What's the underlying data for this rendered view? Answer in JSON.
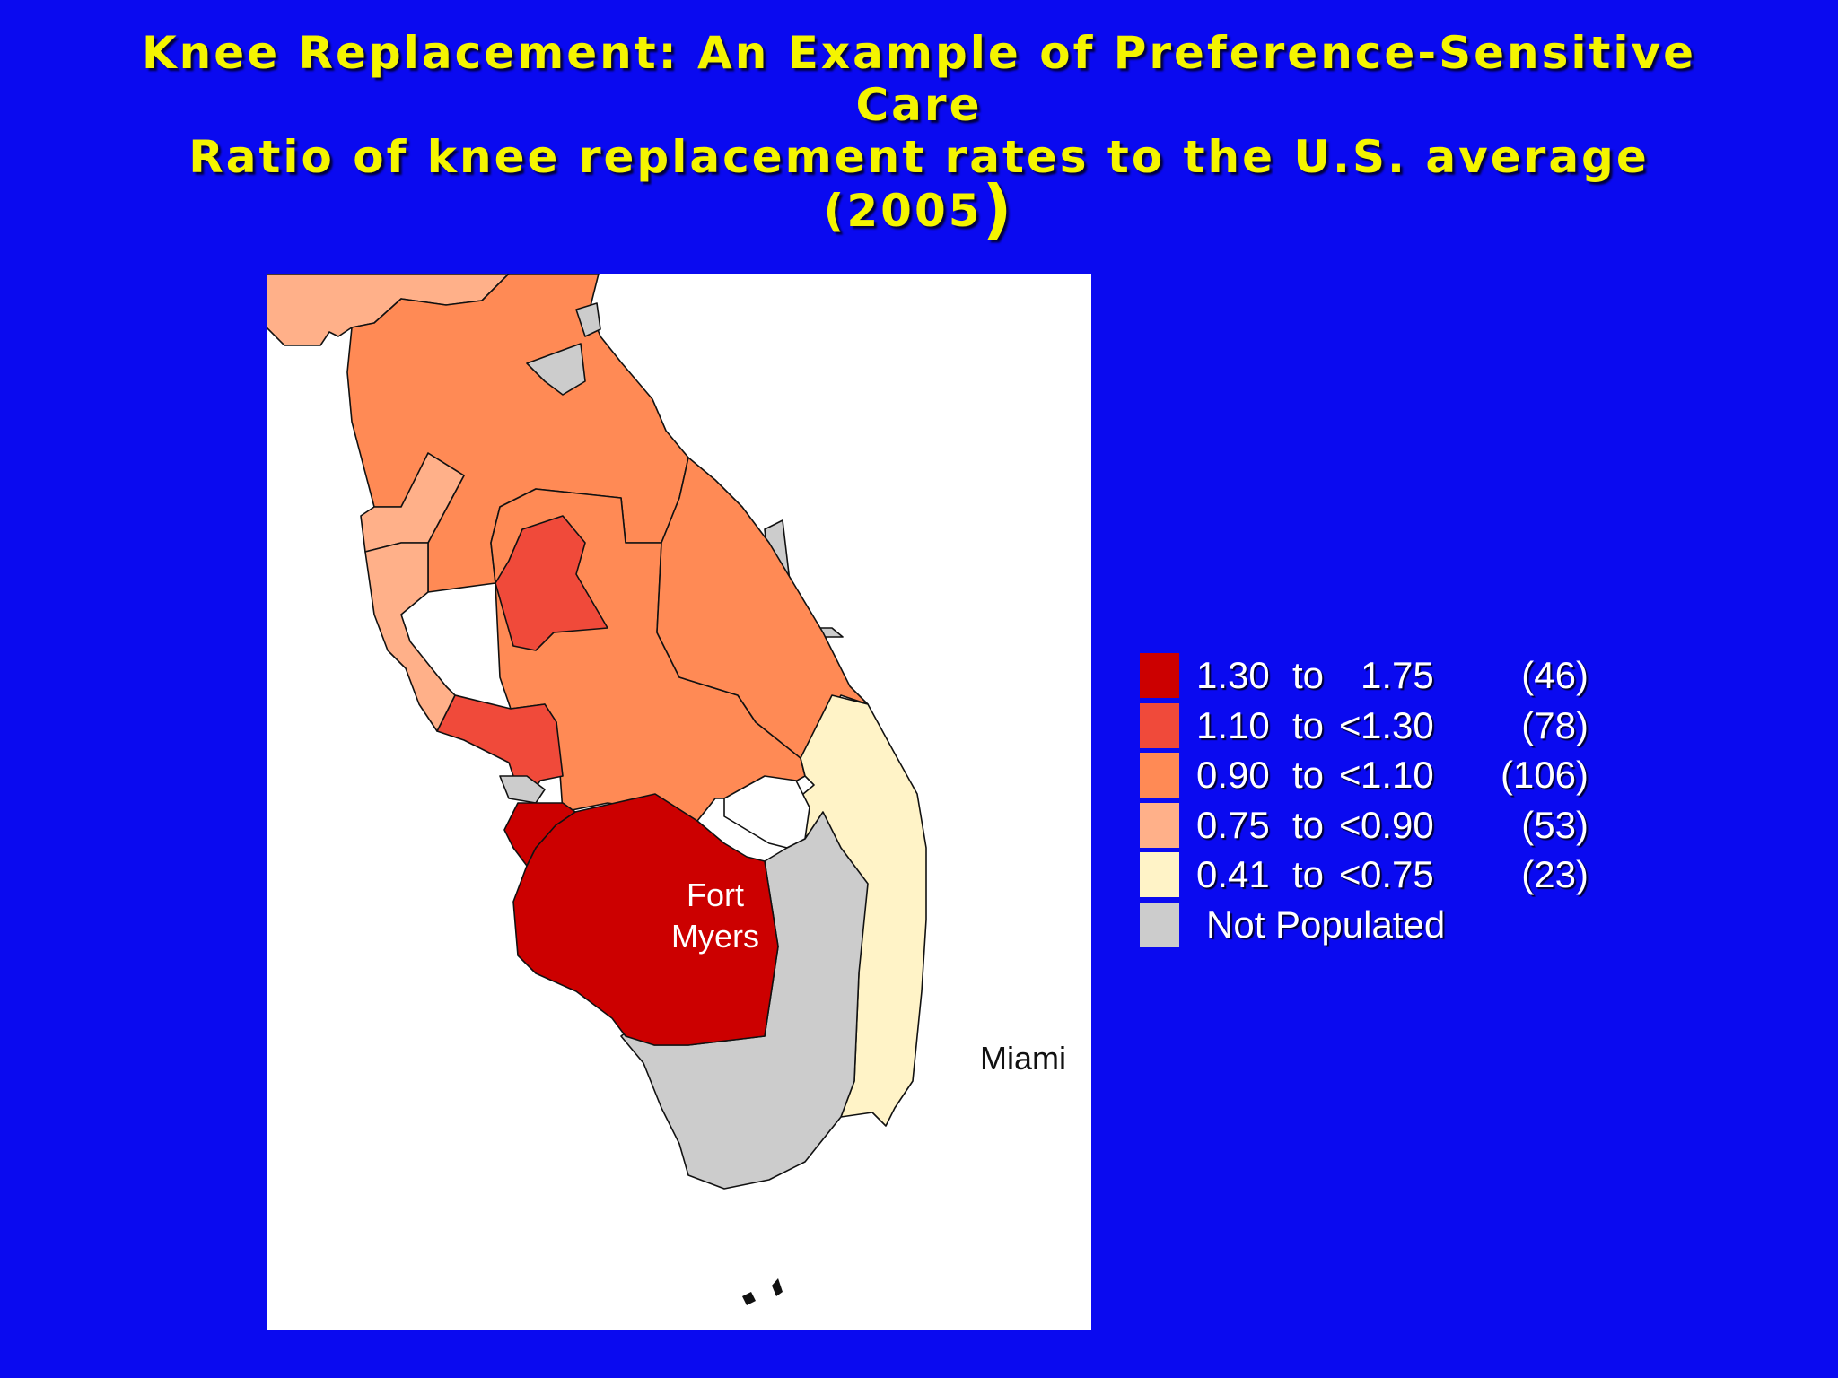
{
  "title": {
    "line1": "Knee Replacement: An Example of Preference-Sensitive",
    "line2": "Care",
    "line3": "Ratio of knee replacement rates to the U.S. average",
    "line4": "(2005",
    "line4_paren": ")"
  },
  "map": {
    "labels": {
      "fort_myers_1": "Fort",
      "fort_myers_2": "Myers",
      "miami": "Miami"
    }
  },
  "legend": {
    "items": [
      {
        "low": "1.30",
        "to": "to",
        "lt": "",
        "high": "1.75",
        "count": "(46)",
        "color": "#cc0000"
      },
      {
        "low": "1.10",
        "to": "to",
        "lt": "<",
        "high": "1.30",
        "count": "(78)",
        "color": "#f04a3a"
      },
      {
        "low": "0.90",
        "to": "to",
        "lt": "<",
        "high": "1.10",
        "count": "(106)",
        "color": "#ff8a55"
      },
      {
        "low": "0.75",
        "to": "to",
        "lt": "<",
        "high": "0.90",
        "count": "(53)",
        "color": "#ffb089"
      },
      {
        "low": "0.41",
        "to": "to",
        "lt": "<",
        "high": "0.75",
        "count": "(23)",
        "color": "#fff3c7"
      }
    ],
    "not_populated": {
      "label": "Not Populated",
      "color": "#cccccc"
    }
  }
}
